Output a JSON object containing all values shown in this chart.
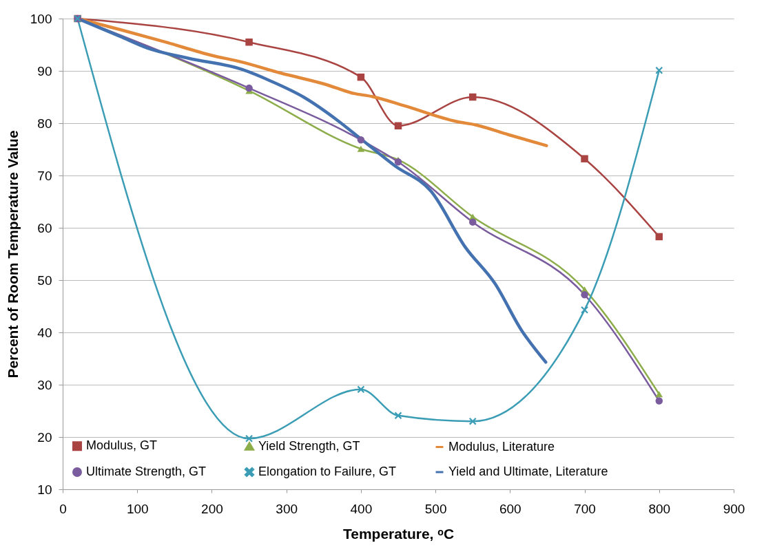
{
  "chart_data": {
    "type": "line",
    "xlabel": "Temperature, ᵒC",
    "ylabel": "Percent of Room Temperature Value",
    "xlim": [
      0,
      900
    ],
    "xticks": [
      0,
      100,
      200,
      300,
      400,
      500,
      600,
      700,
      800,
      900
    ],
    "ylim": [
      10,
      100
    ],
    "yticks": [
      10,
      20,
      30,
      40,
      50,
      60,
      70,
      80,
      90,
      100
    ],
    "grid": "y",
    "legend": "bottom",
    "series": [
      {
        "name": "Modulus, GT",
        "color": "#a94442",
        "marker": "square",
        "x": [
          20,
          250,
          400,
          450,
          550,
          700,
          800
        ],
        "values": [
          100,
          95.5,
          88.8,
          79.5,
          85.0,
          73.2,
          58.3
        ]
      },
      {
        "name": "Yield Strength, GT",
        "color": "#8cad4a",
        "marker": "triangle",
        "x": [
          20,
          250,
          400,
          450,
          550,
          700,
          800
        ],
        "values": [
          100,
          86.2,
          75.1,
          73.0,
          62.1,
          48.2,
          28.2
        ]
      },
      {
        "name": "Modulus, Literature",
        "color": "#e3893a",
        "marker": "none",
        "x": [
          20,
          77,
          138,
          199,
          240,
          292,
          353,
          390,
          415,
          459,
          529,
          553,
          598,
          649
        ],
        "values": [
          100,
          97.9,
          95.5,
          93.0,
          91.7,
          89.6,
          87.4,
          85.7,
          85.1,
          83.3,
          80.3,
          79.7,
          77.8,
          75.7
        ]
      },
      {
        "name": "Ultimate Strength, GT",
        "color": "#7a5c9e",
        "marker": "circle",
        "x": [
          20,
          250,
          400,
          450,
          550,
          700,
          800
        ],
        "values": [
          100,
          86.7,
          76.8,
          72.6,
          61.1,
          47.2,
          26.9
        ]
      },
      {
        "name": "Elongation to Failure, GT",
        "color": "#3a9db5",
        "marker": "cross",
        "x": [
          20,
          250,
          400,
          450,
          550,
          700,
          800
        ],
        "values": [
          100,
          19.7,
          29.1,
          24.1,
          23.0,
          44.3,
          90.1
        ]
      },
      {
        "name": "Yield and Ultimate, Literature",
        "color": "#4472b0",
        "marker": "none",
        "x": [
          20,
          77,
          113,
          169,
          240,
          280,
          323,
          369,
          399,
          446,
          494,
          540,
          580,
          615,
          648
        ],
        "values": [
          100,
          96.6,
          94.4,
          92.4,
          90.3,
          88.0,
          85.0,
          80.5,
          77.1,
          71.8,
          67.0,
          56.3,
          49.3,
          40.5,
          34.3
        ]
      }
    ]
  }
}
